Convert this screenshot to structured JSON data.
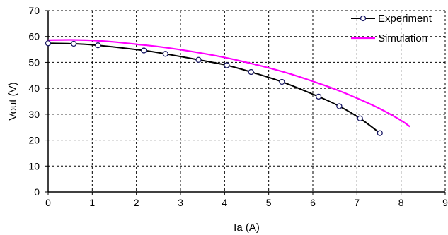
{
  "chart_data": {
    "type": "line",
    "xlabel": "Ia (A)",
    "ylabel": "Vout (V)",
    "xlim": [
      0,
      9
    ],
    "ylim": [
      0,
      70
    ],
    "xticks": [
      0,
      1,
      2,
      3,
      4,
      5,
      6,
      7,
      8,
      9
    ],
    "yticks": [
      0,
      10,
      20,
      30,
      40,
      50,
      60,
      70
    ],
    "grid": true,
    "legend_position": "top-right",
    "series": [
      {
        "name": "Experiment",
        "color": "#000000",
        "marker": "circle",
        "x": [
          0.0,
          0.58,
          1.13,
          2.17,
          2.66,
          3.41,
          4.05,
          4.6,
          5.3,
          6.13,
          6.6,
          7.07,
          7.52
        ],
        "y": [
          57.4,
          57.2,
          56.6,
          54.6,
          53.3,
          51.0,
          48.9,
          46.3,
          42.5,
          36.8,
          33.1,
          28.4,
          22.7
        ]
      },
      {
        "name": "Simulation",
        "color": "#ff00ff",
        "marker": "none",
        "x": [
          0.0,
          0.5,
          1.0,
          1.5,
          2.0,
          2.5,
          3.0,
          3.5,
          4.0,
          4.5,
          5.0,
          5.5,
          6.0,
          6.5,
          7.0,
          7.5,
          8.0,
          8.2
        ],
        "y": [
          58.6,
          58.7,
          58.5,
          57.9,
          57.0,
          56.1,
          54.9,
          53.5,
          51.9,
          50.0,
          47.9,
          45.5,
          42.7,
          39.7,
          36.2,
          32.3,
          27.6,
          25.2
        ]
      }
    ]
  }
}
